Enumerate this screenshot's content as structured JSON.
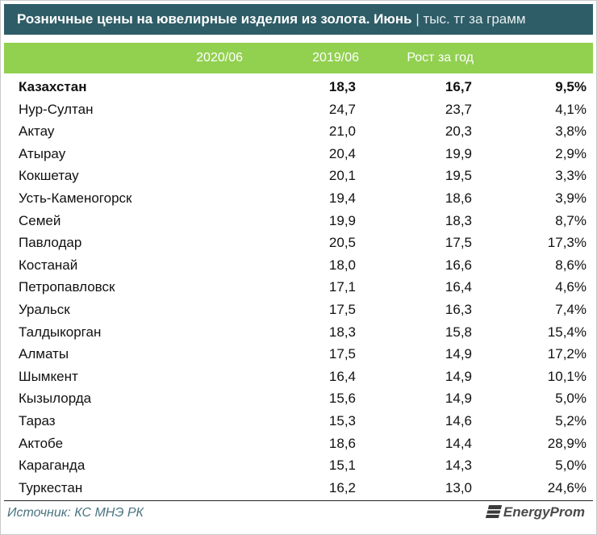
{
  "header": {
    "title": "Розничные цены на ювелирные изделия из золота. Июнь",
    "unit": "| тыс. тг за грамм"
  },
  "table": {
    "columns": [
      "2020/06",
      "2019/06",
      "Рост за год"
    ],
    "rows": [
      [
        "Казахстан",
        "18,3",
        "16,7",
        "9,5%"
      ],
      [
        "Нур-Султан",
        "24,7",
        "23,7",
        "4,1%"
      ],
      [
        "Актау",
        "21,0",
        "20,3",
        "3,8%"
      ],
      [
        "Атырау",
        "20,4",
        "19,9",
        "2,9%"
      ],
      [
        "Кокшетау",
        "20,1",
        "19,5",
        "3,3%"
      ],
      [
        "Усть-Каменогорск",
        "19,4",
        "18,6",
        "3,9%"
      ],
      [
        "Семей",
        "19,9",
        "18,3",
        "8,7%"
      ],
      [
        "Павлодар",
        "20,5",
        "17,5",
        "17,3%"
      ],
      [
        "Костанай",
        "18,0",
        "16,6",
        "8,6%"
      ],
      [
        "Петропавловск",
        "17,1",
        "16,4",
        "4,6%"
      ],
      [
        "Уральск",
        "17,5",
        "16,3",
        "7,4%"
      ],
      [
        "Талдыкорган",
        "18,3",
        "15,8",
        "15,4%"
      ],
      [
        "Алматы",
        "17,5",
        "14,9",
        "17,2%"
      ],
      [
        "Шымкент",
        "16,4",
        "14,9",
        "10,1%"
      ],
      [
        "Кызылорда",
        "15,6",
        "14,9",
        "5,0%"
      ],
      [
        "Тараз",
        "15,3",
        "14,6",
        "5,2%"
      ],
      [
        "Актобе",
        "18,6",
        "14,4",
        "28,9%"
      ],
      [
        "Караганда",
        "15,1",
        "14,3",
        "5,0%"
      ],
      [
        "Туркестан",
        "16,2",
        "13,0",
        "24,6%"
      ]
    ]
  },
  "footer": {
    "source": "Источник: КС МНЭ РК",
    "logo": "EnergyProm"
  }
}
